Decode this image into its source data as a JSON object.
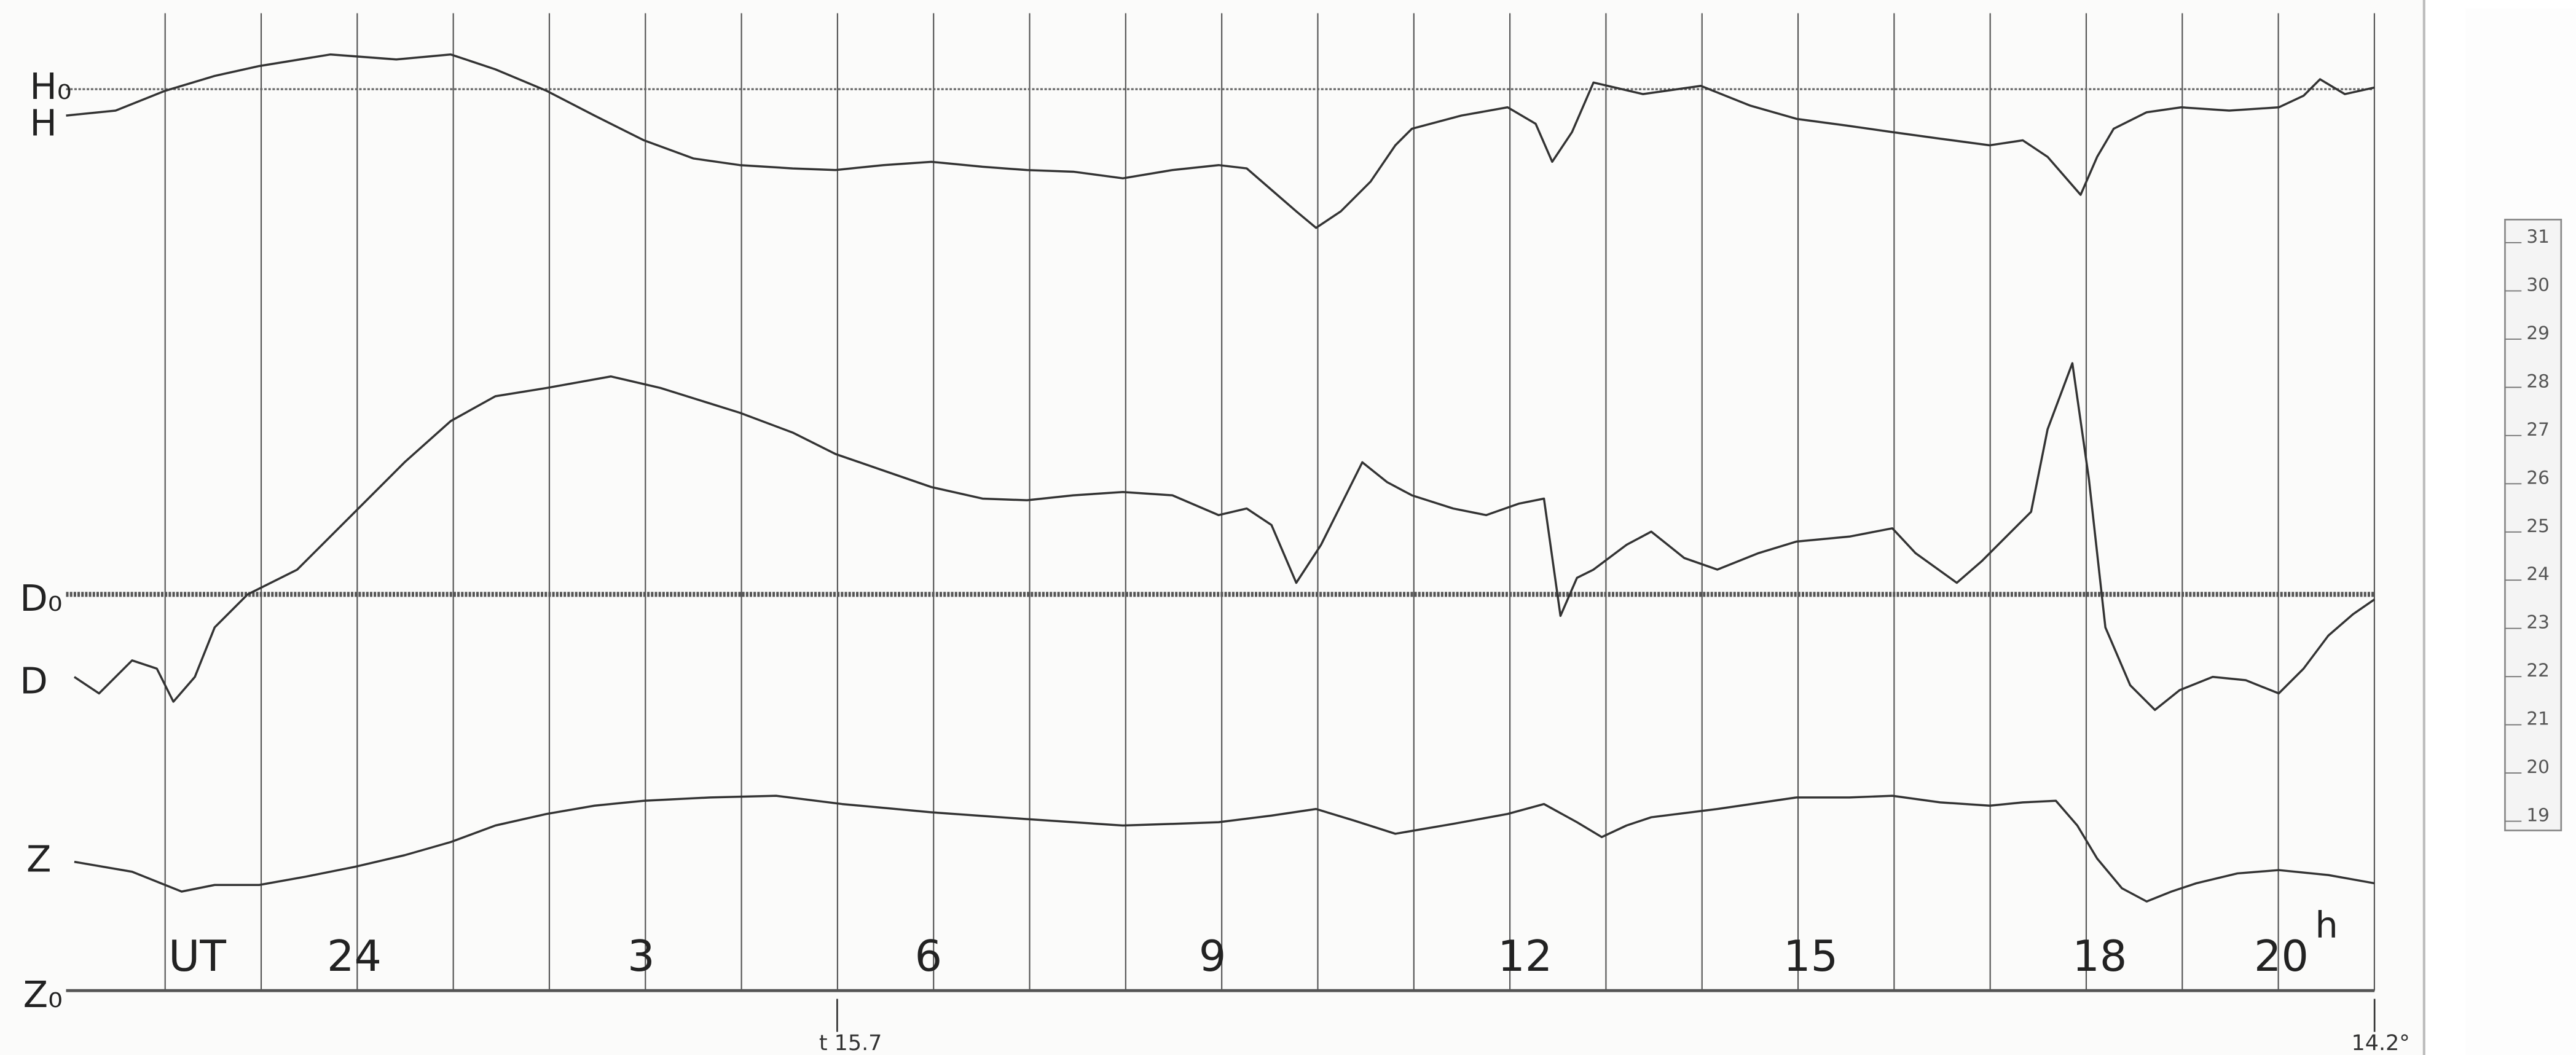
{
  "trace_labels": [
    "H₀",
    "H",
    "D₀",
    "D",
    "Z",
    "Z₀"
  ],
  "time_axis": {
    "unit": "UT",
    "hours": [
      "24",
      "3",
      "6",
      "9",
      "12",
      "15",
      "18",
      "20"
    ],
    "hour_suffix": "h"
  },
  "markers": {
    "temperature_start": "t 15.7",
    "temperature_end": "14.2°"
  },
  "scale": [
    "31",
    "30",
    "29",
    "28",
    "27",
    "26",
    "25",
    "24",
    "23",
    "22",
    "21",
    "20",
    "19"
  ]
}
